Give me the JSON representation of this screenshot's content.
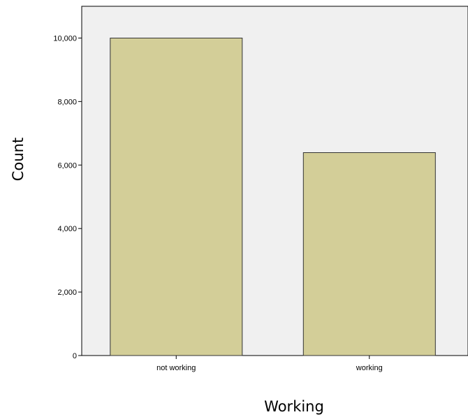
{
  "chart_data": {
    "type": "bar",
    "xlabel": "Working",
    "ylabel": "Count",
    "categories": [
      "not working",
      "working"
    ],
    "values": [
      10000,
      6390
    ],
    "ylim": [
      0,
      11000
    ],
    "yticks": [
      0,
      2000,
      4000,
      6000,
      8000,
      10000
    ],
    "ytick_labels": [
      "0",
      "2,000",
      "4,000",
      "6,000",
      "8,000",
      "10,000"
    ],
    "grid": false,
    "legend": "none",
    "colors": {
      "plot_background": "#f0f0f0",
      "bar_fill": "#d3ce98",
      "bar_stroke": "#333333",
      "axis": "#000000"
    }
  }
}
